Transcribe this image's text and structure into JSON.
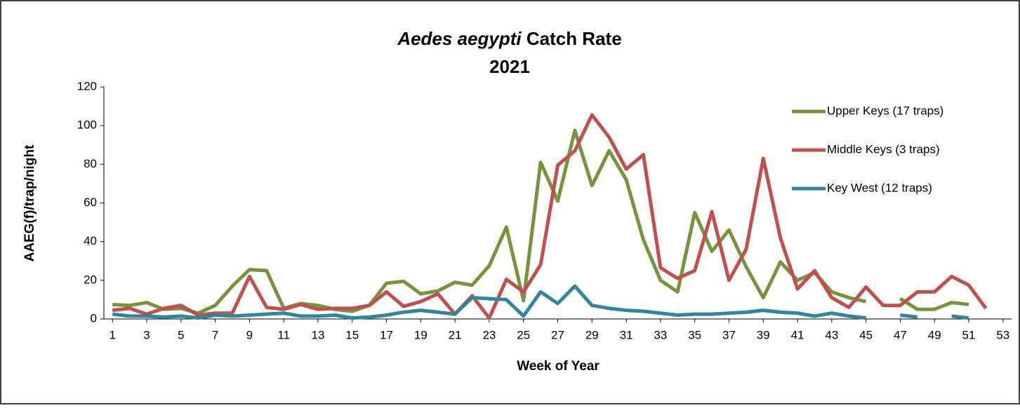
{
  "chart_data": {
    "type": "line",
    "title": [
      "Aedes aegypti",
      "Catch Rate"
    ],
    "subtitle": "2021",
    "x_label": "Week of Year",
    "y_label": "AAEG(f)/trap/night",
    "x": [
      1,
      2,
      3,
      4,
      5,
      6,
      7,
      8,
      9,
      10,
      11,
      12,
      13,
      14,
      15,
      16,
      17,
      18,
      19,
      20,
      21,
      22,
      23,
      24,
      25,
      26,
      27,
      28,
      29,
      30,
      31,
      32,
      33,
      34,
      35,
      36,
      37,
      38,
      39,
      40,
      41,
      42,
      43,
      44,
      45,
      46,
      47,
      48,
      49,
      50,
      51,
      52
    ],
    "series": [
      {
        "name": "Upper Keys (17 traps)",
        "color": "#77933c",
        "values": [
          7.5,
          7,
          8.5,
          5,
          5.5,
          3,
          7,
          17,
          25.5,
          25,
          5.5,
          8,
          7,
          5,
          4,
          7,
          18.5,
          19.5,
          13,
          14.5,
          19,
          17.5,
          27.5,
          47.5,
          9.5,
          81,
          61,
          97.5,
          69,
          87,
          72,
          41,
          20,
          14,
          55,
          35,
          46,
          27,
          11,
          29.5,
          20,
          24,
          14,
          11,
          9,
          null,
          10.5,
          5,
          5,
          8.5,
          7.5,
          null
        ]
      },
      {
        "name": "Middle Keys (3 traps)",
        "color": "#c0504d",
        "values": [
          4.5,
          5.5,
          2.5,
          5.5,
          7,
          2,
          3,
          3,
          22,
          6,
          5,
          7.5,
          5,
          5.5,
          5.5,
          7,
          14,
          6.5,
          9,
          13,
          2.5,
          12,
          0.5,
          20.5,
          14,
          28,
          79.5,
          87,
          105.5,
          94,
          77.5,
          85,
          26.5,
          21,
          25,
          55.5,
          20,
          36,
          83,
          42,
          15.5,
          25,
          11,
          6,
          16.5,
          7,
          7,
          14,
          14,
          22,
          17.5,
          5.5
        ]
      },
      {
        "name": "Key West (12 traps)",
        "color": "#31859c",
        "values": [
          2.5,
          1.5,
          1.5,
          1,
          1.5,
          0.5,
          2,
          1.5,
          2,
          2.5,
          3,
          1.5,
          1.5,
          2,
          0.5,
          1,
          2,
          3.5,
          4.5,
          3.5,
          2.5,
          11,
          10.5,
          10,
          1.5,
          14,
          8,
          17,
          7,
          5.5,
          4.5,
          4,
          3,
          2,
          2.5,
          2.5,
          3,
          3.5,
          4.5,
          3.5,
          3,
          1.5,
          3,
          1.5,
          0.5,
          null,
          2,
          1,
          null,
          1.5,
          0.5,
          null
        ]
      }
    ],
    "xlim": [
      0.5,
      53.5
    ],
    "xticks": [
      1,
      3,
      5,
      7,
      9,
      11,
      13,
      15,
      17,
      19,
      21,
      23,
      25,
      27,
      29,
      31,
      33,
      35,
      37,
      39,
      41,
      43,
      45,
      47,
      49,
      51,
      53
    ],
    "ylim": [
      0,
      120
    ],
    "yticks": [
      0,
      20,
      40,
      60,
      80,
      100,
      120
    ],
    "grid": false,
    "legend": "upper right"
  }
}
